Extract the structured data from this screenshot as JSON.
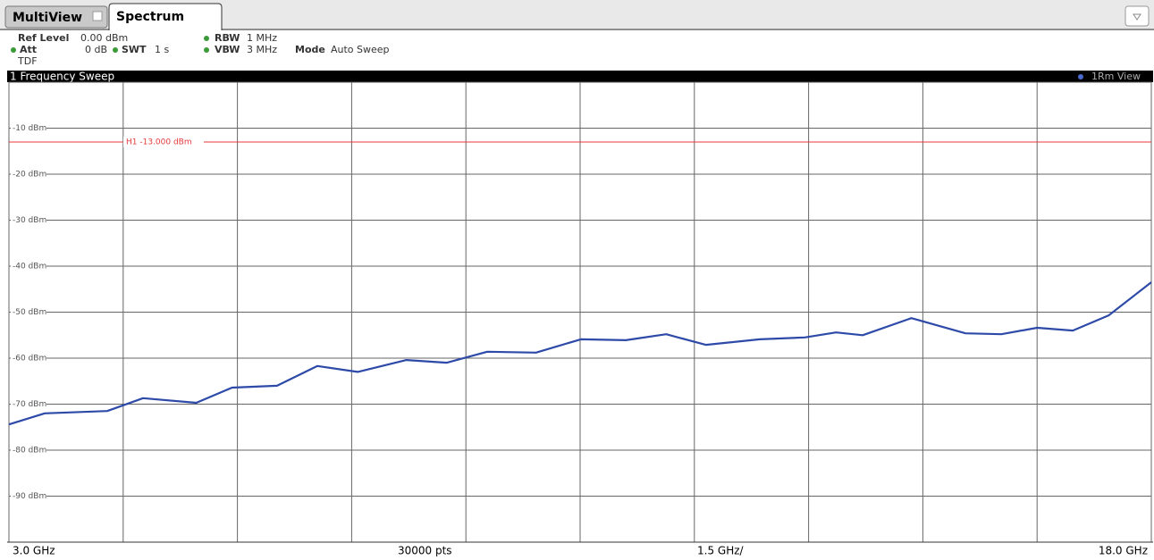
{
  "header": {
    "tabs": [
      "MultiView",
      "Spectrum"
    ],
    "ref_level_label": "Ref Level",
    "ref_level": "0.00 dBm",
    "att_label": "Att",
    "att": "0 dB",
    "swt_label": "SWT",
    "swt": "1 s",
    "rbw_label": "RBW",
    "rbw": "1 MHz",
    "vbw_label": "VBW",
    "vbw": "3 MHz",
    "mode_label": "Mode",
    "mode": "Auto Sweep",
    "tdf": "TDF",
    "window_title": "1 Frequency Sweep",
    "view": "1Rm View"
  },
  "footer": {
    "start": "3.0 GHz",
    "points": "30000 pts",
    "span_per_div": "1.5 GHz/",
    "stop": "18.0 GHz"
  },
  "chart_data": {
    "type": "line",
    "x": [
      3.0,
      3.47,
      4.29,
      4.76,
      5.46,
      5.93,
      6.52,
      7.05,
      7.58,
      8.22,
      8.75,
      9.28,
      9.92,
      10.51,
      11.1,
      11.63,
      12.15,
      12.86,
      13.45,
      13.86,
      14.21,
      14.85,
      15.56,
      16.03,
      16.5,
      16.97,
      17.44,
      18.0
    ],
    "series": [
      {
        "name": "1Rm",
        "color": "#2e4aa8",
        "values": [
          -74.4,
          -72,
          -71.5,
          -68.7,
          -69.7,
          -66.4,
          -66,
          -61.7,
          -63,
          -60.4,
          -61,
          -58.6,
          -58.8,
          -55.9,
          -56.1,
          -54.8,
          -57.1,
          -55.9,
          -55.5,
          -54.4,
          -55,
          -51.3,
          -54.6,
          -54.8,
          -53.4,
          -54,
          -50.7,
          -43.5
        ]
      }
    ],
    "xlim": [
      3.0,
      18.0
    ],
    "xticks": [
      3,
      4.5,
      6,
      7.5,
      9,
      10.5,
      12,
      13.5,
      15,
      16.5,
      18
    ],
    "ylim": [
      -100,
      0
    ],
    "yticks": [
      {
        "value": -10,
        "label": "-10 dBm"
      },
      {
        "value": -20,
        "label": "-20 dBm"
      },
      {
        "value": -30,
        "label": "-30 dBm"
      },
      {
        "value": -40,
        "label": "-40 dBm"
      },
      {
        "value": -50,
        "label": "-50 dBm"
      },
      {
        "value": -60,
        "label": "-60 dBm"
      },
      {
        "value": -70,
        "label": "-70 dBm"
      },
      {
        "value": -80,
        "label": "-80 dBm"
      },
      {
        "value": -90,
        "label": "-90 dBm"
      }
    ],
    "grid": true,
    "reference_line": {
      "value": -13,
      "label": "H1 -13.000 dBm",
      "color": "#e83a3a"
    }
  }
}
